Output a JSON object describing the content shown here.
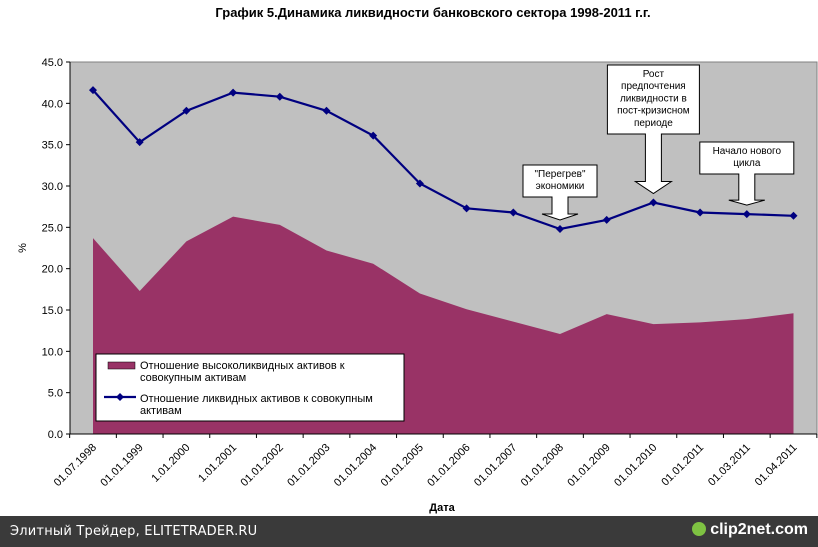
{
  "chart_data": {
    "type": "area",
    "title": "График 5.Динамика ликвидности банковского сектора 1998-2011 г.г.",
    "xlabel": "Дата",
    "ylabel": "%",
    "ylim": [
      0,
      45
    ],
    "yticks": [
      "0.0",
      "5.0",
      "10.0",
      "15.0",
      "20.0",
      "25.0",
      "30.0",
      "35.0",
      "40.0",
      "45.0"
    ],
    "xtick_labels": [
      "01.07.1998",
      "01.01.1999",
      "1.01.2000",
      "1.01.2001",
      "01.01.2002",
      "01.01.2003",
      "01.01.2004",
      "01.01.2005",
      "01.01.2006",
      "01.01.2007",
      "01.01.2008",
      "01.01.2009",
      "01.01.2010",
      "01.01.2011",
      "01.03.2011",
      "01.04.2011"
    ],
    "grid": false,
    "legend_position": "lower-left",
    "series": [
      {
        "name": "Отношение высоколиквидных активов к совокупным активам",
        "type": "area",
        "color": "#993366",
        "values": [
          23.7,
          17.3,
          23.3,
          26.3,
          25.3,
          22.2,
          20.6,
          17.0,
          15.1,
          13.6,
          12.1,
          14.5,
          13.3,
          13.5,
          13.9,
          14.6
        ]
      },
      {
        "name": "Отношение ликвидных активов к совокупным активам",
        "type": "line",
        "color": "#000080",
        "values": [
          41.6,
          35.3,
          39.1,
          41.3,
          40.8,
          39.1,
          36.1,
          30.3,
          27.3,
          26.8,
          24.8,
          25.9,
          28.0,
          26.8,
          26.6,
          26.4
        ]
      }
    ],
    "annotations": [
      {
        "text": [
          "\"Перегрев\"",
          "экономики"
        ],
        "target_index": 10
      },
      {
        "text": [
          "Рост",
          "предпочтения",
          "ликвидности в",
          "пост-кризисном",
          "периоде"
        ],
        "target_index": 12
      },
      {
        "text": [
          "Начало нового",
          "цикла"
        ],
        "target_index": 14
      }
    ],
    "legend_entries": [
      [
        "Отношение высоколиквидных активов к",
        "совокупным активам"
      ],
      [
        "Отношение ликвидных активов к совокупным",
        "активам"
      ]
    ]
  },
  "colors": {
    "plot_background": "#c0c0c0",
    "area": "#993366",
    "line": "#000080"
  },
  "footer": {
    "source": "Элитный Трейдер, ELITETRADER.RU",
    "logo": "clip2net.com",
    "logo_icon": "clip2net-logo-icon"
  }
}
